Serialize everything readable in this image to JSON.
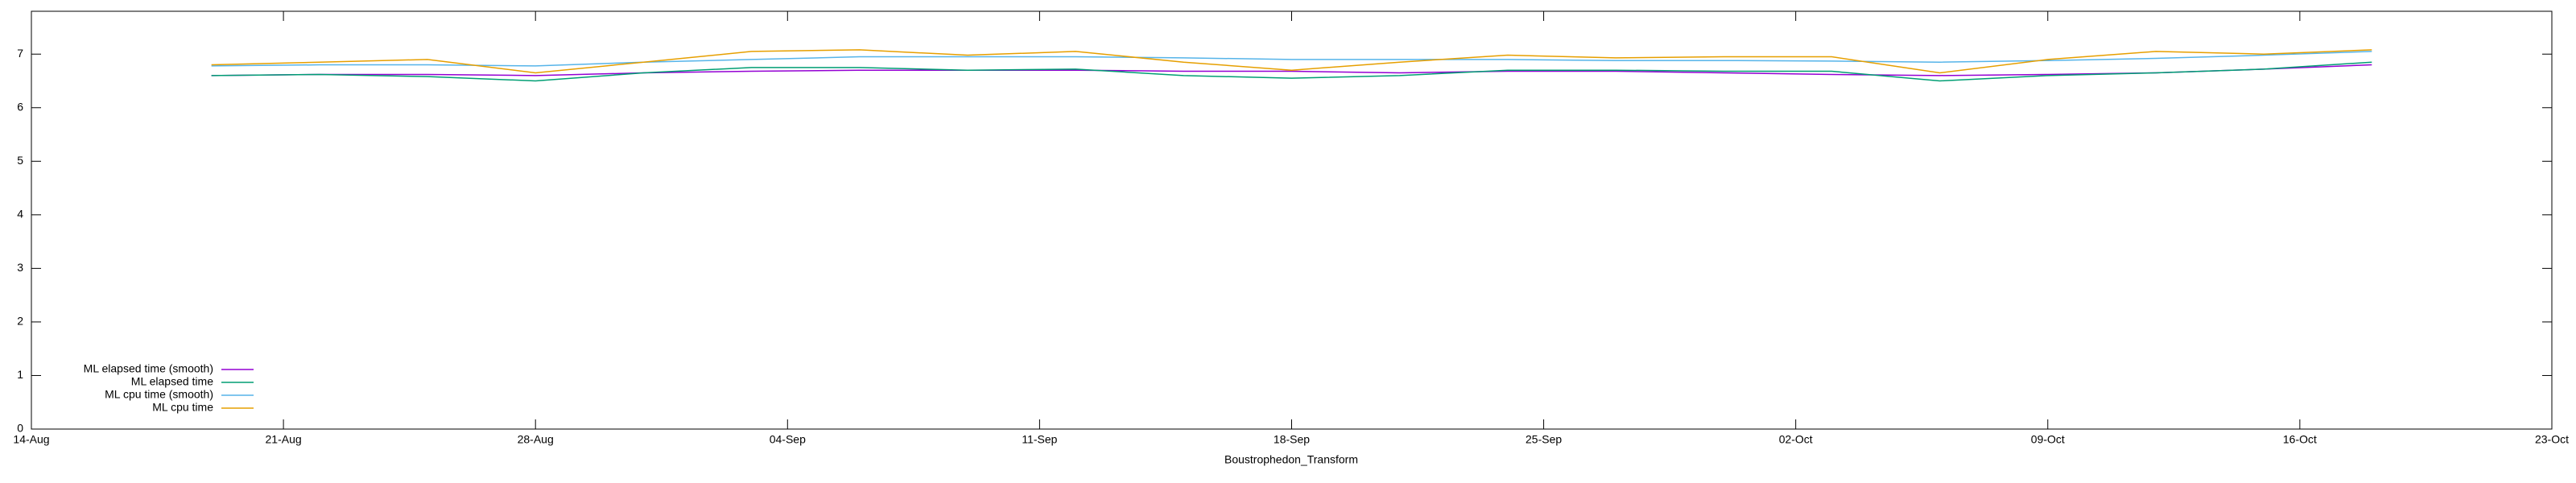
{
  "chart_data": {
    "type": "line",
    "xlabel": "Boustrophedon_Transform",
    "x": [
      "19-Aug",
      "22-Aug",
      "25-Aug",
      "28-Aug",
      "31-Aug",
      "03-Sep",
      "06-Sep",
      "09-Sep",
      "12-Sep",
      "15-Sep",
      "18-Sep",
      "21-Sep",
      "24-Sep",
      "27-Sep",
      "30-Sep",
      "03-Oct",
      "06-Oct",
      "09-Oct",
      "12-Oct",
      "15-Oct",
      "18-Oct"
    ],
    "series": [
      {
        "name": "ML elapsed time (smooth)",
        "color": "#9400d3",
        "values": [
          6.6,
          6.62,
          6.62,
          6.6,
          6.65,
          6.68,
          6.7,
          6.7,
          6.7,
          6.68,
          6.68,
          6.65,
          6.68,
          6.68,
          6.65,
          6.62,
          6.6,
          6.62,
          6.65,
          6.72,
          6.8
        ]
      },
      {
        "name": "ML elapsed time",
        "color": "#009e73",
        "values": [
          6.6,
          6.62,
          6.58,
          6.5,
          6.65,
          6.75,
          6.75,
          6.7,
          6.72,
          6.6,
          6.55,
          6.6,
          6.7,
          6.7,
          6.68,
          6.68,
          6.5,
          6.6,
          6.65,
          6.72,
          6.85
        ]
      },
      {
        "name": "ML cpu time (smooth)",
        "color": "#56b4e9",
        "values": [
          6.78,
          6.8,
          6.8,
          6.78,
          6.85,
          6.9,
          6.95,
          6.95,
          6.95,
          6.93,
          6.9,
          6.9,
          6.9,
          6.88,
          6.88,
          6.87,
          6.85,
          6.88,
          6.92,
          6.98,
          7.05
        ]
      },
      {
        "name": "ML cpu time",
        "color": "#e69f00",
        "values": [
          6.8,
          6.85,
          6.9,
          6.65,
          6.85,
          7.05,
          7.08,
          6.98,
          7.05,
          6.85,
          6.7,
          6.85,
          6.98,
          6.93,
          6.95,
          6.95,
          6.65,
          6.9,
          7.05,
          7.0,
          7.08
        ]
      }
    ],
    "xlim": [
      "14-Aug",
      "23-Oct"
    ],
    "xticks": [
      "14-Aug",
      "21-Aug",
      "28-Aug",
      "04-Sep",
      "11-Sep",
      "18-Sep",
      "25-Sep",
      "02-Oct",
      "09-Oct",
      "16-Oct",
      "23-Oct"
    ],
    "ylim": [
      0,
      7.8
    ],
    "yticks": [
      0,
      1,
      2,
      3,
      4,
      5,
      6,
      7
    ],
    "legend": "bottom left"
  }
}
